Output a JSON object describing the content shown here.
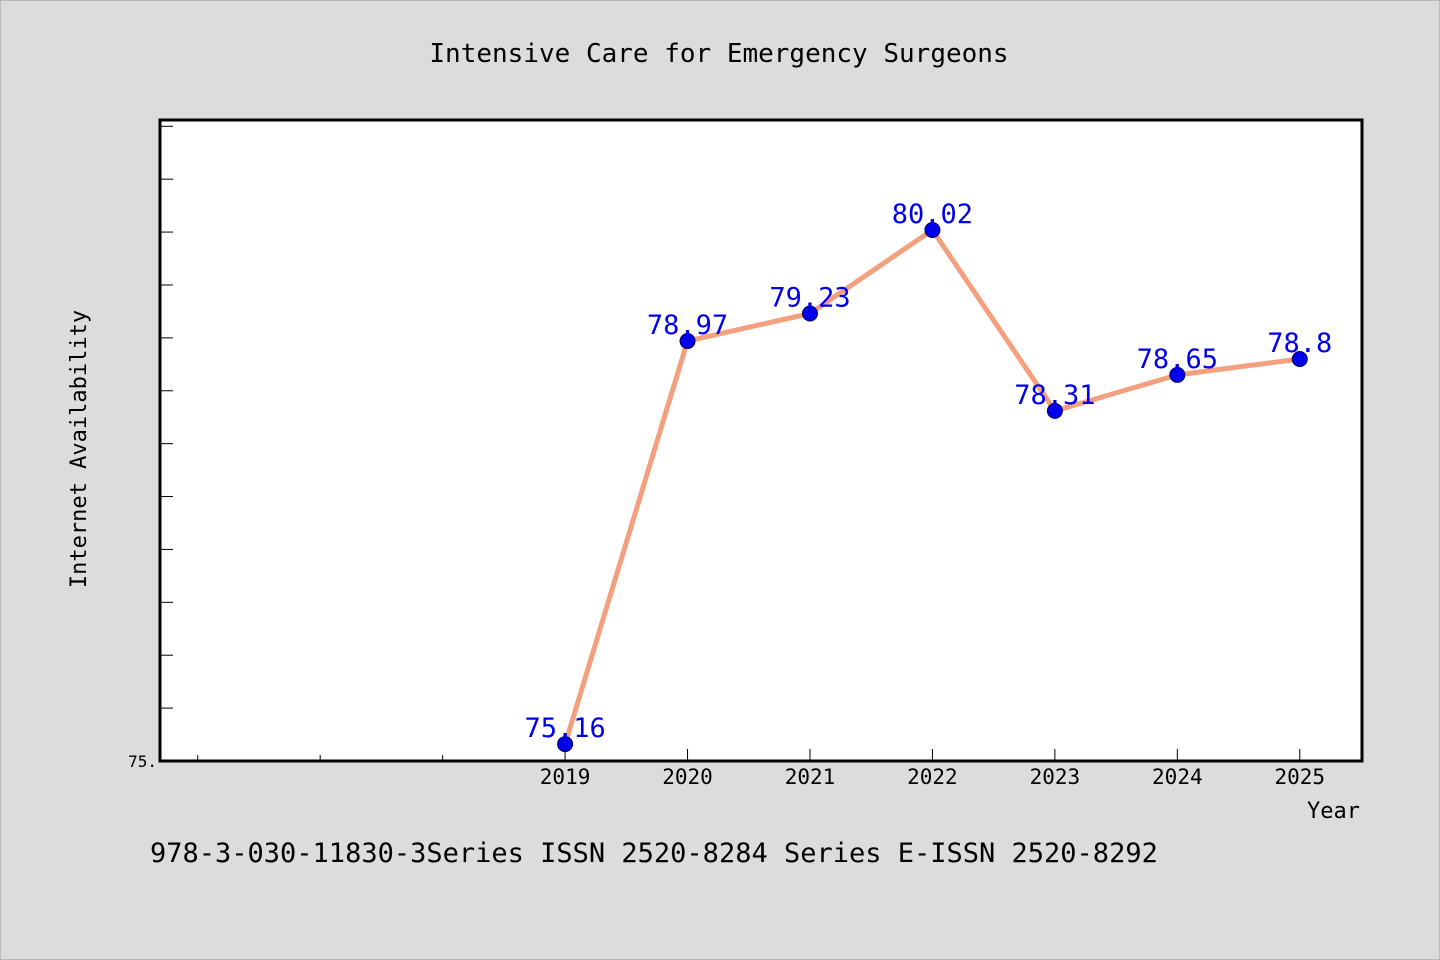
{
  "chart_data": {
    "type": "line",
    "title": "Intensive Care for Emergency Surgeons",
    "xlabel": "Year",
    "ylabel": "Internet Availability",
    "x": [
      2019,
      2020,
      2021,
      2022,
      2023,
      2024,
      2025
    ],
    "x_tick_labels": [
      "2019",
      "2020",
      "2021",
      "2022",
      "2023",
      "2024",
      "2025"
    ],
    "xlim": [
      2015.7,
      2025.5
    ],
    "ylim": [
      75.0,
      81.05
    ],
    "y_tick_labels": [
      "75."
    ],
    "series": [
      {
        "values": [
          75.16,
          78.97,
          79.23,
          80.02,
          78.31,
          78.65,
          78.8
        ],
        "data_labels": [
          "75.16",
          "78.97",
          "79.23",
          "80.02",
          "78.31",
          "78.65",
          "78.8"
        ]
      }
    ],
    "grid": false,
    "legend": "none",
    "colors": {
      "line": "#f4a07e",
      "marker": "#0000ee",
      "data_label": "#0000ee",
      "figure_background": "#dcdcdc",
      "plot_background": "#ffffff"
    },
    "annotations": [
      "978-3-030-11830-3Series ISSN 2520-8284 Series E-ISSN 2520-8292"
    ]
  }
}
